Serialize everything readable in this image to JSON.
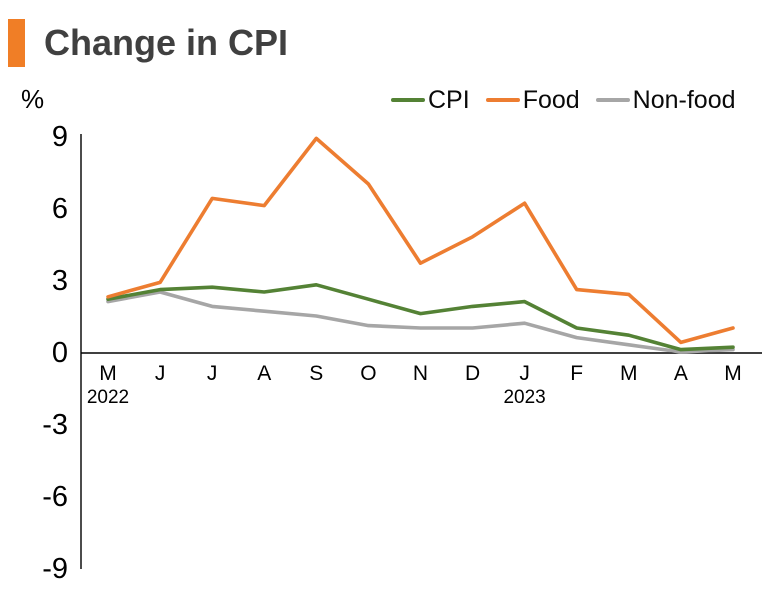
{
  "header": {
    "title": "Change in CPI",
    "accent_color": "#F07E26"
  },
  "axis_unit_label": "%",
  "legend": {
    "items": [
      {
        "label": "CPI",
        "color": "#548235"
      },
      {
        "label": "Food",
        "color": "#ED7D31"
      },
      {
        "label": "Non-food",
        "color": "#A6A6A6"
      }
    ]
  },
  "chart_data": {
    "type": "line",
    "title": "Change in CPI",
    "ylabel": "%",
    "xlabel": "",
    "grid": false,
    "legend_position": "top-right",
    "ylim": [
      -9,
      9
    ],
    "y_ticks": [
      9,
      6,
      3,
      0,
      -3,
      -6,
      -9
    ],
    "x_categories": [
      "M",
      "J",
      "J",
      "A",
      "S",
      "O",
      "N",
      "D",
      "J",
      "F",
      "M",
      "A",
      "M"
    ],
    "x_year_labels": [
      {
        "text": "2022",
        "index": 0
      },
      {
        "text": "2023",
        "index": 8
      }
    ],
    "series": [
      {
        "name": "CPI",
        "color": "#548235",
        "values": [
          2.2,
          2.6,
          2.7,
          2.5,
          2.8,
          2.2,
          1.6,
          1.9,
          2.1,
          1.0,
          0.7,
          0.1,
          0.2
        ]
      },
      {
        "name": "Food",
        "color": "#ED7D31",
        "values": [
          2.3,
          2.9,
          6.4,
          6.1,
          8.9,
          7.0,
          3.7,
          4.8,
          6.2,
          2.6,
          2.4,
          0.4,
          1.0
        ]
      },
      {
        "name": "Non-food",
        "color": "#A6A6A6",
        "values": [
          2.1,
          2.5,
          1.9,
          1.7,
          1.5,
          1.1,
          1.0,
          1.0,
          1.2,
          0.6,
          0.3,
          0.0,
          0.1
        ]
      }
    ]
  }
}
